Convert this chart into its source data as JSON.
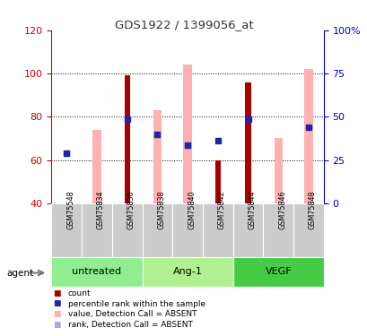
{
  "title": "GDS1922 / 1399056_at",
  "samples": [
    "GSM75548",
    "GSM75834",
    "GSM75836",
    "GSM75838",
    "GSM75840",
    "GSM75842",
    "GSM75844",
    "GSM75846",
    "GSM75848"
  ],
  "groups": [
    {
      "label": "untreated",
      "indices": [
        0,
        1,
        2
      ],
      "color": "#90ee90"
    },
    {
      "label": "Ang-1",
      "indices": [
        3,
        4,
        5
      ],
      "color": "#b0f090"
    },
    {
      "label": "VEGF",
      "indices": [
        6,
        7,
        8
      ],
      "color": "#44cc44"
    }
  ],
  "red_bars": [
    null,
    null,
    99,
    null,
    null,
    60,
    96,
    null,
    null
  ],
  "pink_bars": [
    null,
    74,
    null,
    83,
    104,
    null,
    null,
    70,
    102
  ],
  "blue_dots": [
    63,
    null,
    79,
    72,
    67,
    69,
    79,
    null,
    75
  ],
  "lavender_dots": [
    63,
    null,
    null,
    72,
    67,
    null,
    null,
    null,
    null
  ],
  "ylim_left": [
    40,
    120
  ],
  "ylim_right": [
    0,
    100
  ],
  "yticks_left": [
    40,
    60,
    80,
    100,
    120
  ],
  "yticks_right": [
    0,
    25,
    50,
    75,
    100
  ],
  "yticklabels_right": [
    "0",
    "25",
    "50",
    "75",
    "100%"
  ],
  "red_bar_width": 0.18,
  "pink_bar_width": 0.28,
  "red_color": "#aa0000",
  "pink_color": "#ffb0b0",
  "blue_color": "#2222aa",
  "lavender_color": "#aaaadd",
  "left_axis_color": "#cc0000",
  "right_axis_color": "#0000cc"
}
